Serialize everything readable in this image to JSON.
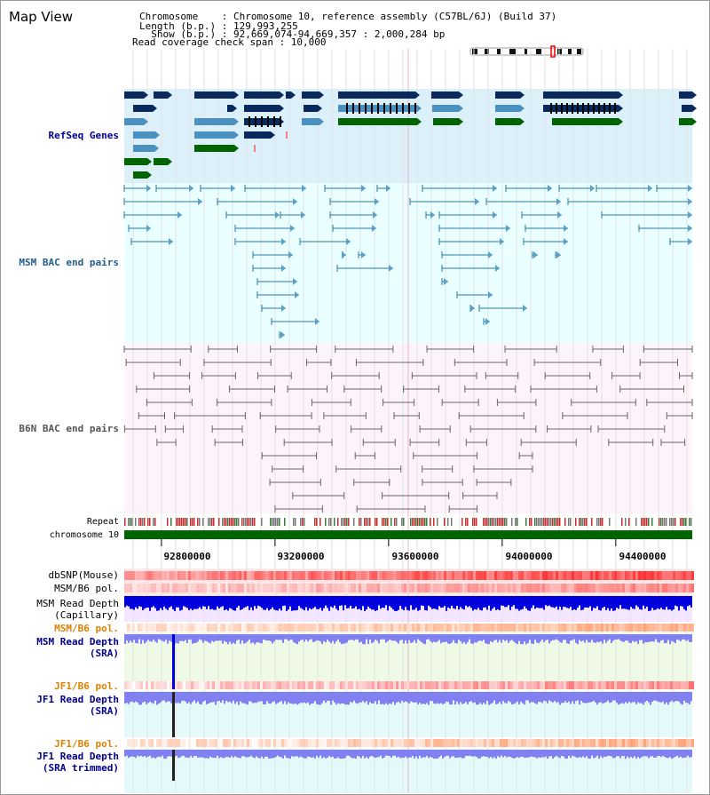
{
  "header": {
    "title": "Map View",
    "info_lines": [
      "Chromosome    : Chromosome 10, reference assembly (C57BL/6J) (Build 37)",
      "Length (b.p.) : 129,993,255",
      "  Show (b.p.) : 92,669,074-94,669,357 : 2,000,284 bp",
      "Read coverage check span : 10,000"
    ]
  },
  "tracks": {
    "refseq": "RefSeq Genes",
    "msm_bac": "MSM BAC end pairs",
    "b6n_bac": "B6N BAC end pairs",
    "repeat": "Repeat",
    "chromosome": "chromosome 10",
    "dbsnp": "dbSNP(Mouse)",
    "msm_b6_pol_1": "MSM/B6 pol.",
    "msm_depth_cap_1": "MSM Read Depth",
    "msm_depth_cap_2": "(Capillary)",
    "msm_b6_pol_2": "MSM/B6 pol.",
    "msm_depth_sra_1": "MSM Read Depth",
    "msm_depth_sra_2": "(SRA)",
    "jf1_b6_pol_1": "JF1/B6 pol.",
    "jf1_depth_sra_1": "JF1 Read Depth",
    "jf1_depth_sra_2": "(SRA)",
    "jf1_b6_pol_2": "JF1/B6 pol.",
    "jf1_depth_trim_1": "JF1 Read Depth",
    "jf1_depth_trim_2": "(SRA trimmed)"
  },
  "axis": {
    "ticks": [
      "92800000",
      "93200000",
      "93600000",
      "94000000",
      "94400000"
    ],
    "tick_values": [
      92800000,
      93200000,
      93600000,
      94000000,
      94400000
    ],
    "range": [
      92669074,
      94669357
    ]
  },
  "colors": {
    "navy": "#0a2a5e",
    "steel": "#4a90c0",
    "green": "#006400",
    "msm_teal": "#2a7aa0",
    "b6n_gray": "#666666",
    "red": "#e02020",
    "depth_blue": "#0000dd",
    "depth_light": "#8080f0"
  }
}
